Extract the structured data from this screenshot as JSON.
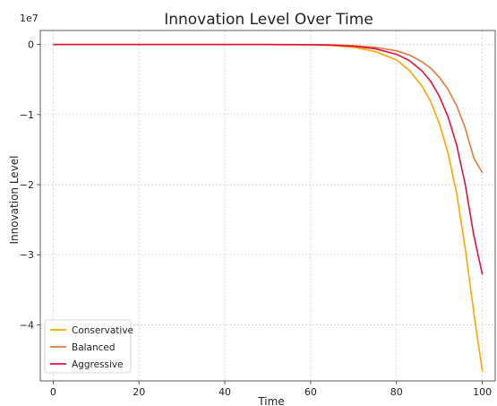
{
  "chart_data": {
    "type": "line",
    "title": "Innovation Level Over Time",
    "xlabel": "Time",
    "ylabel": "Innovation Level",
    "offset_label": "1e7",
    "xlim": [
      -3,
      103
    ],
    "ylim": [
      -4.8,
      0.2
    ],
    "y_scale_factor": 10000000,
    "x_ticks": [
      0,
      20,
      40,
      60,
      80,
      100
    ],
    "y_ticks": [
      0,
      -1,
      -2,
      -3,
      -4
    ],
    "y_tick_labels": [
      "0",
      "−1",
      "−2",
      "−3",
      "−4"
    ],
    "grid": true,
    "legend_placement": "lower-left",
    "series": [
      {
        "name": "Conservative",
        "color": "#FFA500",
        "x": [
          0,
          10,
          20,
          30,
          40,
          50,
          60,
          65,
          70,
          75,
          80,
          83,
          86,
          88,
          90,
          92,
          94,
          96,
          98,
          100
        ],
        "y": [
          0,
          0,
          0,
          0,
          0,
          0,
          -0.005,
          -0.015,
          -0.04,
          -0.1,
          -0.22,
          -0.37,
          -0.6,
          -0.82,
          -1.13,
          -1.55,
          -2.12,
          -2.9,
          -3.82,
          -4.66
        ]
      },
      {
        "name": "Balanced",
        "color": "#E07B39",
        "x": [
          0,
          10,
          20,
          30,
          40,
          50,
          60,
          65,
          70,
          75,
          80,
          83,
          86,
          88,
          90,
          92,
          94,
          96,
          98,
          100
        ],
        "y": [
          0,
          0,
          0,
          0,
          0,
          0,
          -0.002,
          -0.006,
          -0.016,
          -0.04,
          -0.09,
          -0.15,
          -0.25,
          -0.34,
          -0.47,
          -0.64,
          -0.87,
          -1.19,
          -1.62,
          -1.83
        ]
      },
      {
        "name": "Aggressive",
        "color": "#DC143C",
        "x": [
          0,
          10,
          20,
          30,
          40,
          50,
          60,
          65,
          70,
          75,
          80,
          83,
          86,
          88,
          90,
          92,
          94,
          96,
          98,
          100
        ],
        "y": [
          0,
          0,
          0,
          0,
          0,
          0,
          -0.003,
          -0.009,
          -0.025,
          -0.06,
          -0.14,
          -0.23,
          -0.38,
          -0.53,
          -0.74,
          -1.03,
          -1.43,
          -1.99,
          -2.72,
          -3.28
        ]
      }
    ]
  }
}
